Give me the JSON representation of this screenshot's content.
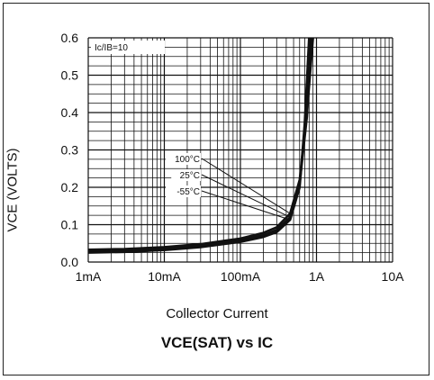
{
  "chart_data": {
    "type": "line",
    "title": "VCE(SAT) vs IC",
    "xlabel": "Collector Current",
    "ylabel": "VCE (VOLTS)",
    "x_scale": "log",
    "xlim": [
      "1mA",
      "10A"
    ],
    "ylim": [
      0,
      0.6
    ],
    "x_ticks": [
      "1mA",
      "10mA",
      "100mA",
      "1A",
      "10A"
    ],
    "y_ticks": [
      "0.0",
      "0.1",
      "0.2",
      "0.3",
      "0.4",
      "0.5",
      "0.6"
    ],
    "grid": true,
    "condition_label": "Ic/IB=10",
    "series": [
      {
        "name": "100°C",
        "x": [
          "1mA",
          "3mA",
          "10mA",
          "30mA",
          "100mA",
          "200mA",
          "300mA",
          "450mA",
          "600mA",
          "750mA",
          "900mA"
        ],
        "y": [
          0.033,
          0.035,
          0.04,
          0.048,
          0.063,
          0.078,
          0.093,
          0.13,
          0.22,
          0.4,
          0.6
        ]
      },
      {
        "name": "25°C",
        "x": [
          "1mA",
          "3mA",
          "10mA",
          "30mA",
          "100mA",
          "200mA",
          "300mA",
          "450mA",
          "600mA",
          "750mA",
          "850mA"
        ],
        "y": [
          0.029,
          0.031,
          0.036,
          0.044,
          0.058,
          0.072,
          0.086,
          0.12,
          0.21,
          0.39,
          0.6
        ]
      },
      {
        "name": "-55°C",
        "x": [
          "1mA",
          "3mA",
          "10mA",
          "30mA",
          "100mA",
          "200mA",
          "300mA",
          "450mA",
          "600mA",
          "700mA",
          "800mA"
        ],
        "y": [
          0.025,
          0.027,
          0.032,
          0.04,
          0.054,
          0.067,
          0.08,
          0.113,
          0.2,
          0.37,
          0.6
        ]
      }
    ]
  }
}
